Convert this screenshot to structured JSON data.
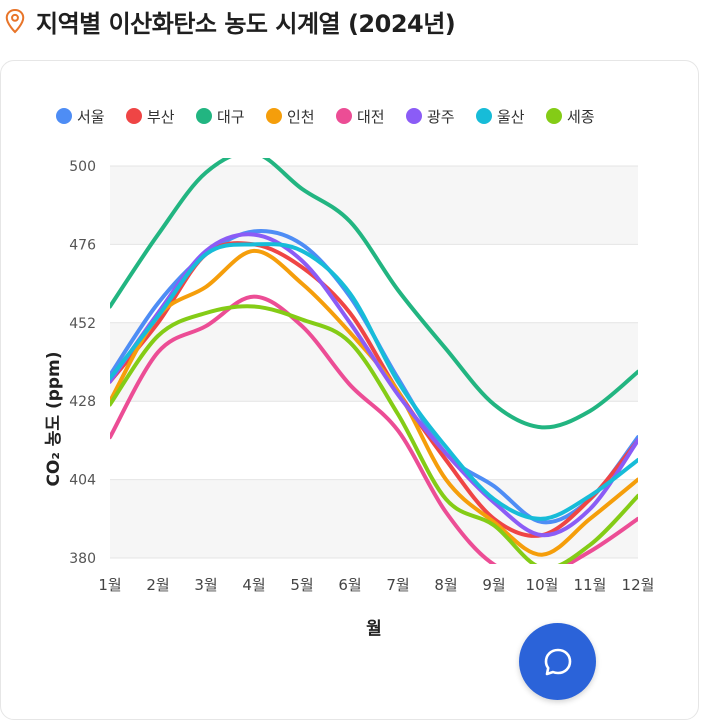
{
  "header": {
    "title": "지역별 이산화탄소 농도 시계열 (2024년)",
    "icon": "location-pin-icon",
    "icon_color": "#e8752a"
  },
  "chat_button": {
    "icon": "chat-bubble-icon",
    "color": "#2b63d9"
  },
  "chart_data": {
    "type": "line",
    "title": "",
    "xlabel": "월",
    "ylabel": "CO₂ 농도 (ppm)",
    "ylim": [
      380,
      500
    ],
    "yticks": [
      380,
      404,
      428,
      452,
      476,
      500
    ],
    "categories": [
      "1월",
      "2월",
      "3월",
      "4월",
      "5월",
      "6월",
      "7월",
      "8월",
      "9월",
      "10월",
      "11월",
      "12월"
    ],
    "grid": true,
    "legend_position": "top-left",
    "series": [
      {
        "name": "서울",
        "color": "#4e8df5",
        "values": [
          436,
          458,
          473,
          480,
          476,
          460,
          435,
          412,
          402,
          391,
          398,
          417
        ]
      },
      {
        "name": "부산",
        "color": "#ef4545",
        "values": [
          434,
          452,
          473,
          476,
          469,
          455,
          431,
          410,
          392,
          387,
          398,
          416
        ]
      },
      {
        "name": "대구",
        "color": "#22b581",
        "values": [
          457,
          479,
          498,
          504,
          493,
          483,
          462,
          444,
          427,
          420,
          425,
          437
        ]
      },
      {
        "name": "인천",
        "color": "#f59e0b",
        "values": [
          428,
          454,
          463,
          474,
          464,
          449,
          431,
          404,
          391,
          381,
          392,
          404
        ]
      },
      {
        "name": "대전",
        "color": "#ec4d95",
        "values": [
          417,
          443,
          451,
          460,
          451,
          433,
          419,
          394,
          378,
          375,
          382,
          392
        ]
      },
      {
        "name": "광주",
        "color": "#8b5cf6",
        "values": [
          434,
          455,
          474,
          479,
          471,
          452,
          430,
          412,
          397,
          387,
          395,
          416
        ]
      },
      {
        "name": "울산",
        "color": "#17bcd8",
        "values": [
          435,
          454,
          473,
          476,
          474,
          461,
          434,
          414,
          398,
          392,
          399,
          410
        ]
      },
      {
        "name": "세종",
        "color": "#84cc16",
        "values": [
          427,
          448,
          455,
          457,
          453,
          446,
          424,
          398,
          390,
          377,
          384,
          399
        ]
      }
    ]
  }
}
